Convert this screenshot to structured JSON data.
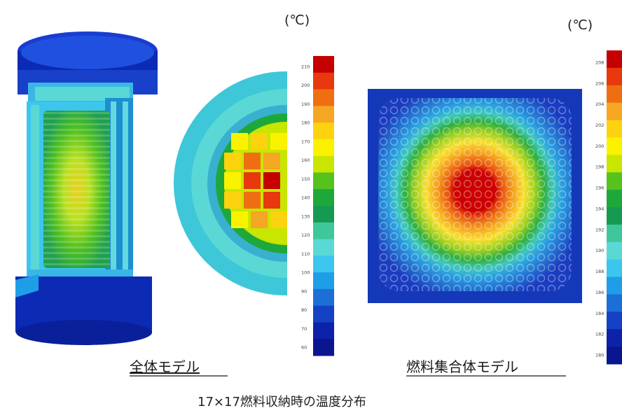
{
  "left_panel": {
    "caption": "全体モデル",
    "unit_label": "(℃)",
    "scale_colors": [
      "#c40000",
      "#e8380d",
      "#f06e12",
      "#f5a623",
      "#fdd20f",
      "#fbf200",
      "#c8e600",
      "#55c21e",
      "#1ea83c",
      "#169a52",
      "#3ec79a",
      "#5ad8d6",
      "#3cc6ee",
      "#1f9ee8",
      "#1c6fd6",
      "#1542c4",
      "#0d22a8",
      "#0a1690"
    ],
    "scale_labels": [
      "210",
      "200",
      "190",
      "180",
      "170",
      "160",
      "150",
      "140",
      "130",
      "120",
      "110",
      "100",
      "90",
      "80",
      "70",
      "60"
    ]
  },
  "right_panel": {
    "caption": "燃料集合体モデル",
    "unit_label": "(℃)",
    "scale_colors": [
      "#c40000",
      "#e8380d",
      "#f06e12",
      "#f5a623",
      "#fdd20f",
      "#fbf200",
      "#c8e600",
      "#55c21e",
      "#1ea83c",
      "#169a52",
      "#3ec79a",
      "#5ad8d6",
      "#3cc6ee",
      "#1f9ee8",
      "#1c6fd6",
      "#1542c4",
      "#0d22a8",
      "#0a1690"
    ],
    "scale_labels": [
      "208",
      "206",
      "204",
      "202",
      "200",
      "198",
      "196",
      "194",
      "192",
      "190",
      "188",
      "186",
      "184",
      "182",
      "180"
    ]
  },
  "figure_title": "17×17燃料収納時の温度分布"
}
